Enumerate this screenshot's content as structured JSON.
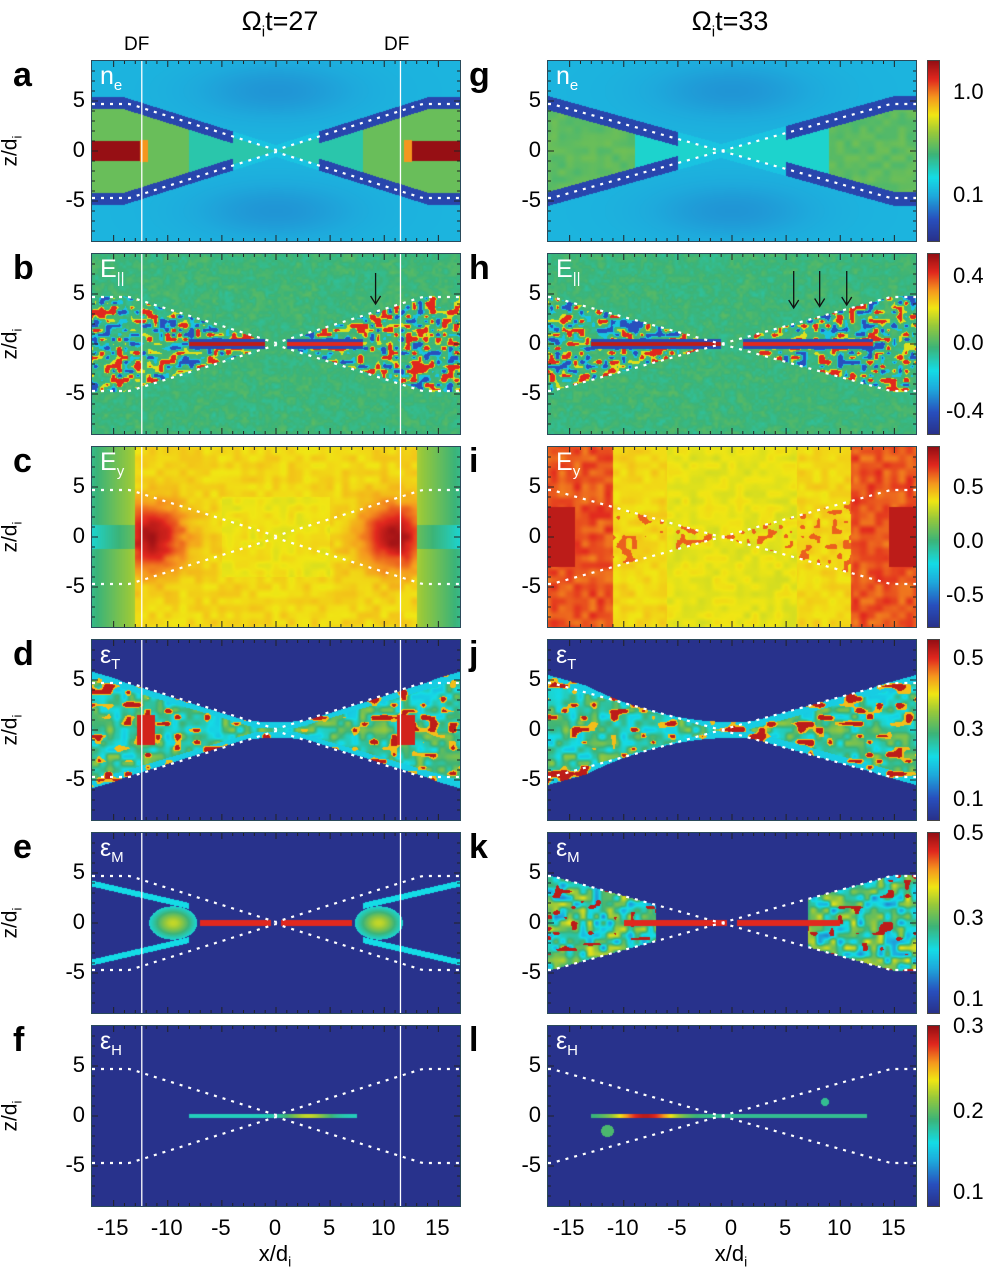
{
  "figure": {
    "columns": [
      {
        "id": "left",
        "title_prefix": "Ω",
        "title_sub": "i",
        "title_suffix": "t=27",
        "df_labels": [
          "DF",
          "DF"
        ]
      },
      {
        "id": "right",
        "title_prefix": "Ω",
        "title_sub": "i",
        "title_suffix": "t=33",
        "df_labels": []
      }
    ],
    "ylabel_main": "z/d",
    "ylabel_sub": "i",
    "xlabel_main": "x/d",
    "xlabel_sub": "i",
    "xticks": [
      "-15",
      "-10",
      "-5",
      "0",
      "5",
      "10",
      "15"
    ],
    "yticks": [
      "5",
      "0",
      "-5"
    ]
  },
  "chart_data": [
    {
      "type": "heatmap",
      "panel": "a",
      "column": "left",
      "field": "n",
      "field_sub": "e",
      "colorscale": "jet",
      "scale": "log",
      "colorbar": {
        "ticks": [
          "1.0",
          "0.1"
        ],
        "range_label": "log"
      },
      "x_range": [
        -17,
        17
      ],
      "z_range": [
        -9,
        9
      ],
      "xlabel": "x/di",
      "ylabel": "z/di",
      "df_lines_x": [
        -12.4,
        11.5
      ],
      "separatrix": "x-point at x≈0, reaching z≈±4.7 at edges",
      "arrows_x": []
    },
    {
      "type": "heatmap",
      "panel": "b",
      "column": "left",
      "field": "E",
      "field_sub": "||",
      "colorscale": "jet",
      "scale": "linear",
      "colorbar": {
        "ticks": [
          "0.4",
          "0.0",
          "-0.4"
        ]
      },
      "x_range": [
        -17,
        17
      ],
      "z_range": [
        -9,
        9
      ],
      "xlabel": "x/di",
      "ylabel": "z/di",
      "df_lines_x": [
        -12.4,
        11.5
      ],
      "arrows_x": [
        9.2
      ]
    },
    {
      "type": "heatmap",
      "panel": "c",
      "column": "left",
      "field": "E",
      "field_sub": "y",
      "colorscale": "jet",
      "scale": "linear",
      "colorbar": {
        "ticks": [
          "0.5",
          "0.0",
          "-0.5"
        ]
      },
      "x_range": [
        -17,
        17
      ],
      "z_range": [
        -9,
        9
      ],
      "xlabel": "x/di",
      "ylabel": "z/di",
      "df_lines_x": [
        -12.4,
        11.5
      ],
      "arrows_x": []
    },
    {
      "type": "heatmap",
      "panel": "d",
      "column": "left",
      "field": "ε",
      "field_sub": "T",
      "colorscale": "jet",
      "scale": "linear",
      "colorbar": {
        "ticks": [
          "0.5",
          "0.3",
          "0.1"
        ]
      },
      "x_range": [
        -17,
        17
      ],
      "z_range": [
        -9,
        9
      ],
      "xlabel": "x/di",
      "ylabel": "z/di",
      "df_lines_x": [
        -12.4,
        11.5
      ],
      "arrows_x": []
    },
    {
      "type": "heatmap",
      "panel": "e",
      "column": "left",
      "field": "ε",
      "field_sub": "M",
      "colorscale": "jet",
      "scale": "linear",
      "colorbar": {
        "ticks": [
          "0.5",
          "0.3",
          "0.1"
        ]
      },
      "x_range": [
        -17,
        17
      ],
      "z_range": [
        -9,
        9
      ],
      "xlabel": "x/di",
      "ylabel": "z/di",
      "df_lines_x": [
        -12.4,
        11.5
      ],
      "arrows_x": []
    },
    {
      "type": "heatmap",
      "panel": "f",
      "column": "left",
      "field": "ε",
      "field_sub": "H",
      "colorscale": "jet",
      "scale": "linear",
      "colorbar": {
        "ticks": [
          "0.3",
          "0.2",
          "0.1"
        ]
      },
      "x_range": [
        -17,
        17
      ],
      "z_range": [
        -9,
        9
      ],
      "xlabel": "x/di",
      "ylabel": "z/di",
      "df_lines_x": [
        -12.4,
        11.5
      ],
      "arrows_x": []
    },
    {
      "type": "heatmap",
      "panel": "g",
      "column": "right",
      "field": "n",
      "field_sub": "e",
      "colorscale": "jet",
      "scale": "log",
      "colorbar": {
        "ticks": [
          "1.0",
          "0.1"
        ]
      },
      "x_range": [
        -17,
        17
      ],
      "z_range": [
        -9,
        9
      ],
      "xlabel": "x/di",
      "ylabel": "z/di",
      "df_lines_x": [],
      "arrows_x": []
    },
    {
      "type": "heatmap",
      "panel": "h",
      "column": "right",
      "field": "E",
      "field_sub": "||",
      "colorscale": "jet",
      "scale": "linear",
      "colorbar": {
        "ticks": [
          "0.4",
          "0.0",
          "-0.4"
        ]
      },
      "x_range": [
        -17,
        17
      ],
      "z_range": [
        -9,
        9
      ],
      "xlabel": "x/di",
      "ylabel": "z/di",
      "df_lines_x": [],
      "arrows_x": [
        5.7,
        8.1,
        10.6
      ]
    },
    {
      "type": "heatmap",
      "panel": "i",
      "column": "right",
      "field": "E",
      "field_sub": "y",
      "colorscale": "jet",
      "scale": "linear",
      "colorbar": {
        "ticks": [
          "0.5",
          "0.0",
          "-0.5"
        ]
      },
      "x_range": [
        -17,
        17
      ],
      "z_range": [
        -9,
        9
      ],
      "xlabel": "x/di",
      "ylabel": "z/di",
      "df_lines_x": [],
      "arrows_x": []
    },
    {
      "type": "heatmap",
      "panel": "j",
      "column": "right",
      "field": "ε",
      "field_sub": "T",
      "colorscale": "jet",
      "scale": "linear",
      "colorbar": {
        "ticks": [
          "0.5",
          "0.3",
          "0.1"
        ]
      },
      "x_range": [
        -17,
        17
      ],
      "z_range": [
        -9,
        9
      ],
      "xlabel": "x/di",
      "ylabel": "z/di",
      "df_lines_x": [],
      "arrows_x": []
    },
    {
      "type": "heatmap",
      "panel": "k",
      "column": "right",
      "field": "ε",
      "field_sub": "M",
      "colorscale": "jet",
      "scale": "linear",
      "colorbar": {
        "ticks": [
          "0.5",
          "0.3",
          "0.1"
        ]
      },
      "x_range": [
        -17,
        17
      ],
      "z_range": [
        -9,
        9
      ],
      "xlabel": "x/di",
      "ylabel": "z/di",
      "df_lines_x": [],
      "arrows_x": []
    },
    {
      "type": "heatmap",
      "panel": "l",
      "column": "right",
      "field": "ε",
      "field_sub": "H",
      "colorscale": "jet",
      "scale": "linear",
      "colorbar": {
        "ticks": [
          "0.3",
          "0.2",
          "0.1"
        ]
      },
      "x_range": [
        -17,
        17
      ],
      "z_range": [
        -9,
        9
      ],
      "xlabel": "x/di",
      "ylabel": "z/di",
      "df_lines_x": [],
      "arrows_x": []
    }
  ]
}
